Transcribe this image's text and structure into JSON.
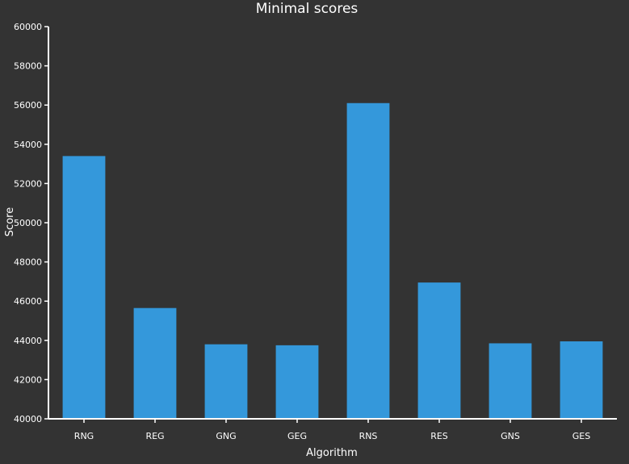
{
  "chart_data": {
    "type": "bar",
    "title": "Minimal scores",
    "xlabel": "Algorithm",
    "ylabel": "Score",
    "categories": [
      "RNG",
      "REG",
      "GNG",
      "GEG",
      "RNS",
      "RES",
      "GNS",
      "GES"
    ],
    "values": [
      53400,
      45650,
      43800,
      43750,
      56100,
      46950,
      43850,
      43950
    ],
    "ylim": [
      40000,
      60000
    ],
    "yticks": [
      40000,
      42000,
      44000,
      46000,
      48000,
      50000,
      52000,
      54000,
      56000,
      58000,
      60000
    ],
    "grid": false,
    "legend": "none",
    "bar_color": "#3498db",
    "background_color": "#333333",
    "text_color": "#ffffff"
  }
}
